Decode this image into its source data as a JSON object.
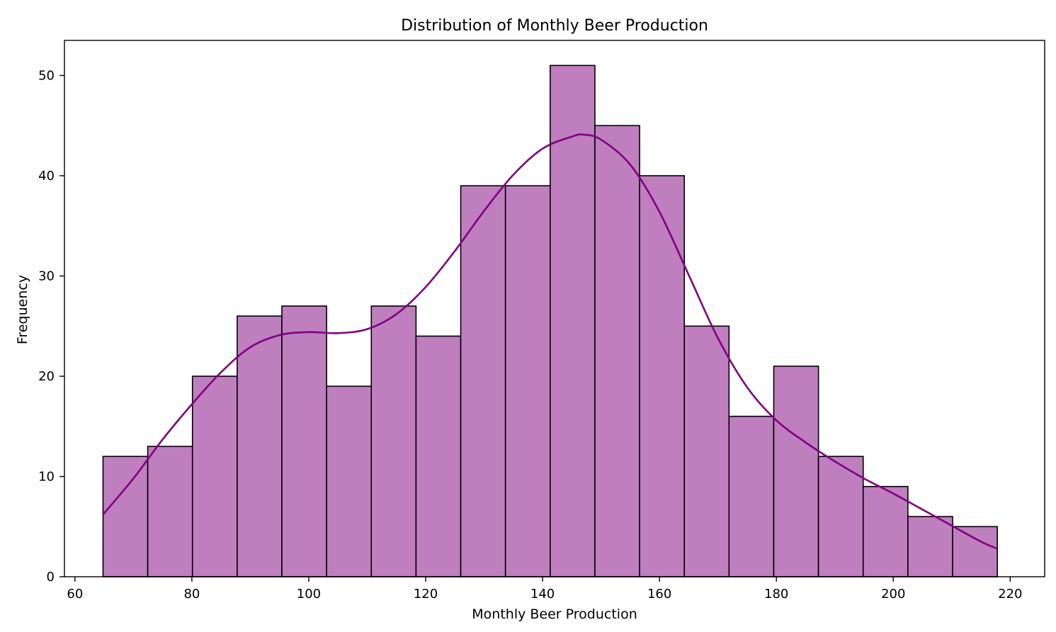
{
  "chart_data": {
    "type": "bar",
    "title": "Distribution of Monthly Beer Production",
    "xlabel": "Monthly Beer Production",
    "ylabel": "Frequency",
    "xlim": [
      58.2,
      225.9
    ],
    "ylim": [
      0,
      53.5
    ],
    "grid": false,
    "legend": "none",
    "xticks": [
      60,
      80,
      100,
      120,
      140,
      160,
      180,
      200,
      220
    ],
    "yticks": [
      0,
      10,
      20,
      30,
      40,
      50
    ],
    "bin_edges": [
      64.8,
      72.45,
      80.1,
      87.75,
      95.4,
      103.05,
      110.7,
      118.35,
      126.0,
      133.65,
      141.3,
      148.95,
      156.6,
      164.25,
      171.9,
      179.55,
      187.2,
      194.85,
      202.5,
      210.15,
      217.8
    ],
    "series": [
      {
        "values": [
          12,
          13,
          20,
          26,
          27,
          19,
          27,
          24,
          39,
          39,
          51,
          45,
          40,
          25,
          16,
          21,
          12,
          9,
          6,
          5
        ],
        "color": "#bf7fbf",
        "edgecolor": "#000000"
      }
    ],
    "kde": {
      "color": "#800080",
      "x": [
        64.8,
        70,
        75,
        80,
        85,
        90,
        95,
        100,
        105,
        110,
        115,
        120,
        125,
        130,
        135,
        140,
        145,
        147,
        150,
        155,
        160,
        165,
        170,
        175,
        180,
        185,
        190,
        195,
        200,
        205,
        210,
        215,
        217.8
      ],
      "y": [
        6.2,
        9.8,
        13.7,
        17.2,
        20.4,
        22.9,
        24.1,
        24.4,
        24.3,
        24.7,
        26.2,
        28.9,
        32.5,
        36.5,
        40.1,
        42.7,
        43.9,
        44.1,
        43.6,
        41.1,
        36.4,
        30.1,
        23.8,
        18.9,
        15.6,
        13.4,
        11.5,
        9.8,
        8.3,
        6.7,
        5.1,
        3.5,
        2.8
      ]
    }
  }
}
